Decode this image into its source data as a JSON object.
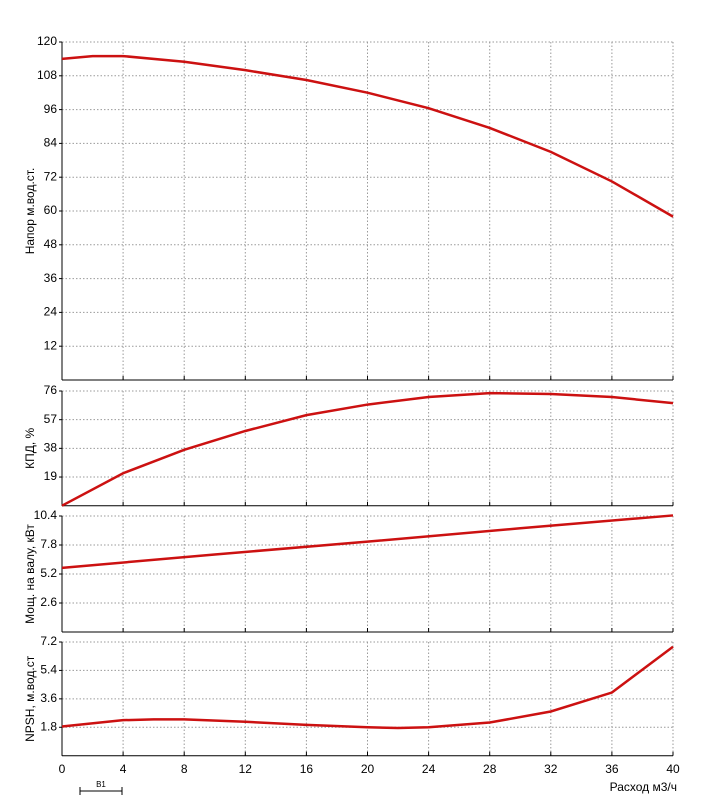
{
  "chart_data": [
    {
      "type": "line",
      "ylabel": "Напор м.вод.ст.",
      "xlim": [
        0,
        40
      ],
      "xticks": [
        0,
        4,
        8,
        12,
        16,
        20,
        24,
        28,
        32,
        36,
        40
      ],
      "ylim": [
        0,
        120
      ],
      "yticks": [
        12,
        24,
        36,
        48,
        60,
        72,
        84,
        96,
        108,
        120
      ],
      "grid": true,
      "x": [
        0,
        2,
        4,
        8,
        12,
        16,
        20,
        24,
        28,
        32,
        36,
        40
      ],
      "series": [
        {
          "color": "#cc1111",
          "values": [
            114,
            115,
            115,
            113,
            110,
            106.5,
            102,
            96.5,
            89.5,
            81,
            70.5,
            58
          ]
        }
      ]
    },
    {
      "type": "line",
      "ylabel": "КПД, %",
      "xlim": [
        0,
        40
      ],
      "xticks": [
        0,
        4,
        8,
        12,
        16,
        20,
        24,
        28,
        32,
        36,
        40
      ],
      "ylim": [
        0,
        76
      ],
      "yticks": [
        19,
        38,
        57,
        76
      ],
      "grid": true,
      "x": [
        0,
        4,
        8,
        12,
        16,
        20,
        24,
        28,
        32,
        36,
        40
      ],
      "series": [
        {
          "color": "#cc1111",
          "values": [
            0,
            21.5,
            37,
            49.5,
            60,
            67,
            72,
            74.6,
            74,
            72,
            68
          ]
        }
      ]
    },
    {
      "type": "line",
      "ylabel": "Мощ. на валу, кВт",
      "xlim": [
        0,
        40
      ],
      "xticks": [
        0,
        4,
        8,
        12,
        16,
        20,
        24,
        28,
        32,
        36,
        40
      ],
      "ylim": [
        0,
        10.4
      ],
      "yticks": [
        2.6,
        5.2,
        7.8,
        10.4
      ],
      "grid": true,
      "x": [
        0,
        10,
        20,
        30,
        40
      ],
      "series": [
        {
          "color": "#cc1111",
          "values": [
            5.75,
            6.95,
            8.1,
            9.3,
            10.45
          ]
        }
      ]
    },
    {
      "type": "line",
      "ylabel": "NPSH, м.вод.ст",
      "xlabel": "Расход м3/ч",
      "xlim": [
        0,
        40
      ],
      "xticks": [
        0,
        4,
        8,
        12,
        16,
        20,
        24,
        28,
        32,
        36,
        40
      ],
      "ylim": [
        0,
        7.2
      ],
      "yticks": [
        1.8,
        3.6,
        5.4,
        7.2
      ],
      "grid": true,
      "x": [
        0,
        4,
        6,
        8,
        12,
        16,
        20,
        22,
        24,
        28,
        32,
        36,
        40
      ],
      "series": [
        {
          "color": "#cc1111",
          "values": [
            1.85,
            2.25,
            2.3,
            2.3,
            2.15,
            1.95,
            1.8,
            1.75,
            1.8,
            2.1,
            2.8,
            4.0,
            6.9
          ]
        }
      ]
    }
  ],
  "annotation": "B1"
}
